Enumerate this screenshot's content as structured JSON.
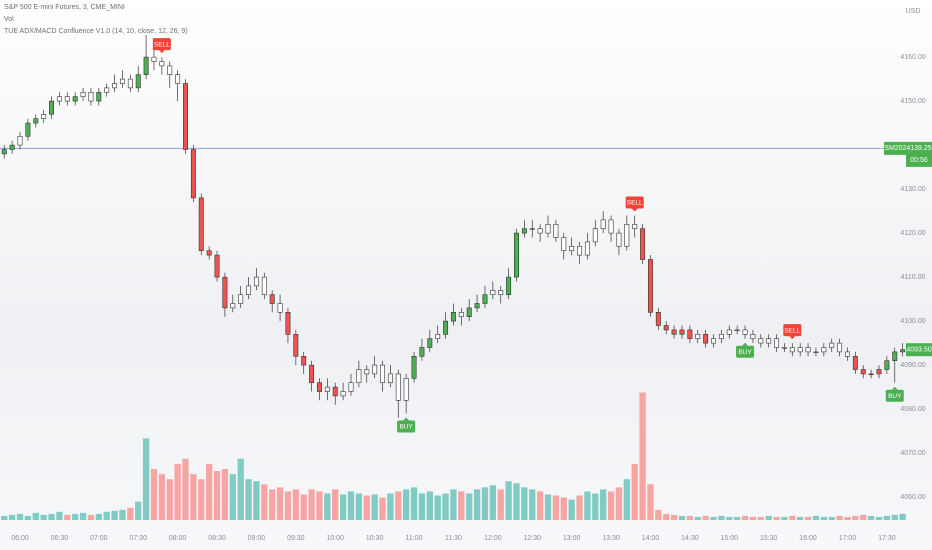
{
  "chart_data": {
    "type": "candlestick",
    "title": "S&P 500 E-mini Futures, 3, CME_MINI",
    "indicator": "TUE ADX/MACD Confluence V1.0 (14, 10, close, 12, 26, 9)",
    "currency": "USD",
    "outline_color": "#333333",
    "open": [
      4138,
      4139,
      4140,
      4142,
      4145,
      4146,
      4147,
      4150,
      4151,
      4150,
      4151,
      4152,
      4150,
      4152,
      4153,
      4154,
      4155,
      4153,
      4156,
      4160,
      4159,
      4158,
      4156,
      4154,
      4139,
      4128,
      4116,
      4115,
      4110,
      4103,
      4104,
      4106,
      4108,
      4110,
      4106,
      4104,
      4102,
      4097,
      4092,
      4090,
      4086,
      4084,
      4085,
      4083,
      4084,
      4086,
      4089,
      4088,
      4090,
      4086,
      4088,
      4082,
      4087,
      4092,
      4094,
      4096,
      4097,
      4100,
      4102,
      4101,
      4103,
      4104,
      4106,
      4107,
      4106,
      4110,
      4120,
      4121,
      4121,
      4120,
      4122,
      4119,
      4116,
      4117,
      4115,
      4118,
      4121,
      4123,
      4120,
      4117,
      4122,
      4121,
      4114,
      4102,
      4099,
      4098,
      4097,
      4098,
      4096,
      4097,
      4095,
      4096,
      4097,
      4098,
      4098,
      4097,
      4096,
      4095,
      4096,
      4094,
      4094,
      4093,
      4094,
      4093,
      4093,
      4094,
      4095,
      4093,
      4092,
      4089,
      4088,
      4088,
      4089,
      4091,
      4093
    ],
    "high": [
      4140,
      4141,
      4143,
      4146,
      4147,
      4148,
      4151,
      4152,
      4152,
      4152,
      4153,
      4153,
      4153,
      4154,
      4156,
      4157,
      4156,
      4158,
      4165,
      4164,
      4160,
      4159,
      4157,
      4155,
      4140,
      4129,
      4117,
      4116,
      4111,
      4106,
      4108,
      4110,
      4112,
      4111,
      4107,
      4106,
      4103,
      4098,
      4093,
      4091,
      4087,
      4087,
      4086,
      4086,
      4088,
      4091,
      4090,
      4092,
      4091,
      4090,
      4089,
      4088,
      4093,
      4096,
      4098,
      4099,
      4102,
      4104,
      4103,
      4105,
      4106,
      4108,
      4109,
      4108,
      4112,
      4121,
      4123,
      4123,
      4122,
      4124,
      4123,
      4120,
      4119,
      4118,
      4120,
      4123,
      4125,
      4124,
      4121,
      4124,
      4124,
      4122,
      4115,
      4103,
      4100,
      4099,
      4099,
      4099,
      4098,
      4098,
      4097,
      4098,
      4099,
      4099,
      4099,
      4098,
      4097,
      4097,
      4097,
      4095,
      4095,
      4095,
      4095,
      4094,
      4095,
      4096,
      4096,
      4094,
      4093,
      4090,
      4089,
      4090,
      4092,
      4094,
      4095
    ],
    "low": [
      4137,
      4138,
      4139,
      4141,
      4144,
      4145,
      4146,
      4149,
      4149,
      4149,
      4150,
      4149,
      4149,
      4151,
      4152,
      4153,
      4152,
      4152,
      4155,
      4157,
      4156,
      4153,
      4150,
      4138,
      4127,
      4115,
      4114,
      4109,
      4101,
      4102,
      4103,
      4105,
      4107,
      4105,
      4102,
      4100,
      4095,
      4090,
      4088,
      4084,
      4082,
      4082,
      4081,
      4082,
      4083,
      4085,
      4086,
      4087,
      4084,
      4085,
      4078,
      4079,
      4086,
      4091,
      4093,
      4095,
      4096,
      4099,
      4099,
      4100,
      4102,
      4103,
      4105,
      4104,
      4105,
      4109,
      4119,
      4119,
      4118,
      4119,
      4118,
      4114,
      4115,
      4113,
      4114,
      4117,
      4120,
      4118,
      4115,
      4116,
      4119,
      4113,
      4101,
      4098,
      4097,
      4096,
      4096,
      4095,
      4095,
      4094,
      4094,
      4095,
      4096,
      4097,
      4096,
      4095,
      4094,
      4094,
      4093,
      4093,
      4092,
      4092,
      4092,
      4092,
      4092,
      4093,
      4092,
      4091,
      4088,
      4087,
      4087,
      4087,
      4088,
      4086,
      4092
    ],
    "close": [
      4139,
      4140,
      4142,
      4145,
      4146,
      4147,
      4150,
      4151,
      4150,
      4151,
      4152,
      4150,
      4152,
      4153,
      4154,
      4155,
      4153,
      4156,
      4160,
      4159,
      4158,
      4156,
      4154,
      4139,
      4128,
      4116,
      4115,
      4110,
      4103,
      4104,
      4106,
      4108,
      4110,
      4106,
      4104,
      4102,
      4097,
      4092,
      4090,
      4086,
      4084,
      4085,
      4083,
      4084,
      4086,
      4089,
      4088,
      4090,
      4086,
      4088,
      4082,
      4087,
      4092,
      4094,
      4096,
      4097,
      4100,
      4102,
      4101,
      4103,
      4104,
      4106,
      4107,
      4106,
      4110,
      4120,
      4121,
      4121,
      4120,
      4122,
      4119,
      4116,
      4117,
      4115,
      4118,
      4121,
      4123,
      4120,
      4117,
      4122,
      4121,
      4114,
      4102,
      4099,
      4098,
      4097,
      4098,
      4096,
      4097,
      4095,
      4096,
      4097,
      4098,
      4098,
      4097,
      4096,
      4095,
      4096,
      4094,
      4094,
      4093,
      4094,
      4093,
      4093,
      4094,
      4095,
      4093,
      4092,
      4089,
      4088,
      4088,
      4089,
      4091,
      4093,
      4093.5
    ],
    "colors": [
      "#4caf50",
      "#4caf50",
      "#ffffff",
      "#4caf50",
      "#4caf50",
      "#ffffff",
      "#4caf50",
      "#ffffff",
      "#ffffff",
      "#4caf50",
      "#ffffff",
      "#ffffff",
      "#4caf50",
      "#ffffff",
      "#ffffff",
      "#ffffff",
      "#ffffff",
      "#4caf50",
      "#4caf50",
      "#ffffff",
      "#ffffff",
      "#ffffff",
      "#ffffff",
      "#ef5350",
      "#ef5350",
      "#ef5350",
      "#ef5350",
      "#ef5350",
      "#ef5350",
      "#ffffff",
      "#ffffff",
      "#ffffff",
      "#ffffff",
      "#ffffff",
      "#ef5350",
      "#ffffff",
      "#ef5350",
      "#ef5350",
      "#ef5350",
      "#ef5350",
      "#ef5350",
      "#ffffff",
      "#ef5350",
      "#ffffff",
      "#ffffff",
      "#ffffff",
      "#ffffff",
      "#ffffff",
      "#ffffff",
      "#ffffff",
      "#ffffff",
      "#ffffff",
      "#4caf50",
      "#4caf50",
      "#4caf50",
      "#ffffff",
      "#4caf50",
      "#4caf50",
      "#ffffff",
      "#4caf50",
      "#4caf50",
      "#4caf50",
      "#ffffff",
      "#ffffff",
      "#4caf50",
      "#4caf50",
      "#4caf50",
      "#ffffff",
      "#ffffff",
      "#ffffff",
      "#ffffff",
      "#ffffff",
      "#ffffff",
      "#ffffff",
      "#ffffff",
      "#ffffff",
      "#ffffff",
      "#ffffff",
      "#ffffff",
      "#ffffff",
      "#ffffff",
      "#ef5350",
      "#ef5350",
      "#ef5350",
      "#ef5350",
      "#ef5350",
      "#ef5350",
      "#ef5350",
      "#ffffff",
      "#ef5350",
      "#ffffff",
      "#ffffff",
      "#ffffff",
      "#ffffff",
      "#ffffff",
      "#ffffff",
      "#ffffff",
      "#ffffff",
      "#ffffff",
      "#ffffff",
      "#ffffff",
      "#ffffff",
      "#ffffff",
      "#ffffff",
      "#ffffff",
      "#ffffff",
      "#ffffff",
      "#ffffff",
      "#ef5350",
      "#ef5350",
      "#ef5350",
      "#ef5350",
      "#4caf50",
      "#4caf50",
      "#4caf50"
    ],
    "volume": {
      "label": "Vol",
      "up_color": "#80cbc4",
      "down_color": "#f5a5a2",
      "values": [
        4,
        5,
        6,
        4,
        7,
        5,
        6,
        8,
        5,
        6,
        7,
        5,
        6,
        8,
        9,
        10,
        12,
        18,
        80,
        50,
        45,
        40,
        55,
        60,
        45,
        40,
        55,
        48,
        50,
        45,
        60,
        40,
        38,
        35,
        30,
        32,
        28,
        30,
        25,
        30,
        28,
        26,
        30,
        25,
        28,
        26,
        24,
        25,
        22,
        26,
        28,
        30,
        32,
        26,
        28,
        24,
        26,
        30,
        28,
        26,
        30,
        32,
        34,
        30,
        38,
        36,
        32,
        30,
        28,
        25,
        24,
        22,
        20,
        24,
        28,
        26,
        30,
        28,
        32,
        40,
        55,
        125,
        35,
        10,
        6,
        5,
        4,
        4,
        3,
        4,
        3,
        4,
        3,
        3,
        4,
        3,
        3,
        4,
        3,
        3,
        4,
        3,
        3,
        4,
        3,
        3,
        4,
        3,
        4,
        5,
        4,
        3,
        4,
        5,
        6
      ]
    },
    "signals": [
      {
        "label": "SELL",
        "index": 20,
        "placement": "above",
        "color": "#f44336"
      },
      {
        "label": "BUY",
        "index": 51,
        "placement": "below",
        "color": "#4caf50"
      },
      {
        "label": "SELL",
        "index": 80,
        "placement": "above",
        "color": "#f44336"
      },
      {
        "label": "BUY",
        "index": 94,
        "placement": "below",
        "color": "#4caf50"
      },
      {
        "label": "SELL",
        "index": 100,
        "placement": "above",
        "color": "#f44336"
      },
      {
        "label": "BUY",
        "index": 113,
        "placement": "below",
        "color": "#4caf50"
      }
    ],
    "price_line": {
      "value": 4139.25,
      "label": "4139.25",
      "symbol": "ESM2022",
      "countdown": "00:56",
      "color": "#9598e0",
      "tag_color": "#4caf50"
    },
    "last_price": {
      "value": 4093.5,
      "label": "4093.50",
      "tag_color": "#4caf50"
    },
    "xlim": [
      -0.54,
      114.3
    ],
    "ylim": [
      4054.8,
      4170.7
    ],
    "y2lim": [
      0,
      500
    ],
    "yticks": [
      {
        "value": 4160,
        "label": "4160.00"
      },
      {
        "value": 4150,
        "label": "4150.00"
      },
      {
        "value": 4130,
        "label": "4130.00"
      },
      {
        "value": 4120,
        "label": "4120.00"
      },
      {
        "value": 4110,
        "label": "4110.00"
      },
      {
        "value": 4100,
        "label": "4100.00"
      },
      {
        "value": 4090,
        "label": "4090.00"
      },
      {
        "value": 4080,
        "label": "4080.00"
      },
      {
        "value": 4070,
        "label": "4070.00"
      },
      {
        "value": 4060,
        "label": "4060.00"
      }
    ],
    "xticks": [
      {
        "value": 2,
        "label": "06:00"
      },
      {
        "value": 7,
        "label": "06:30"
      },
      {
        "value": 12,
        "label": "07:00"
      },
      {
        "value": 17,
        "label": "07:30"
      },
      {
        "value": 22,
        "label": "08:00"
      },
      {
        "value": 27,
        "label": "08:30"
      },
      {
        "value": 32,
        "label": "09:00"
      },
      {
        "value": 37,
        "label": "09:30"
      },
      {
        "value": 42,
        "label": "10:00"
      },
      {
        "value": 47,
        "label": "10:30"
      },
      {
        "value": 52,
        "label": "11:00"
      },
      {
        "value": 57,
        "label": "11:30"
      },
      {
        "value": 62,
        "label": "12:00"
      },
      {
        "value": 67,
        "label": "12:30"
      },
      {
        "value": 72,
        "label": "13:00"
      },
      {
        "value": 77,
        "label": "13:30"
      },
      {
        "value": 82,
        "label": "14:00"
      },
      {
        "value": 87,
        "label": "14:30"
      },
      {
        "value": 92,
        "label": "15:00"
      },
      {
        "value": 97,
        "label": "15:30"
      },
      {
        "value": 102,
        "label": "16:00"
      },
      {
        "value": 107,
        "label": "17:00"
      },
      {
        "value": 112,
        "label": "17:30"
      }
    ]
  }
}
